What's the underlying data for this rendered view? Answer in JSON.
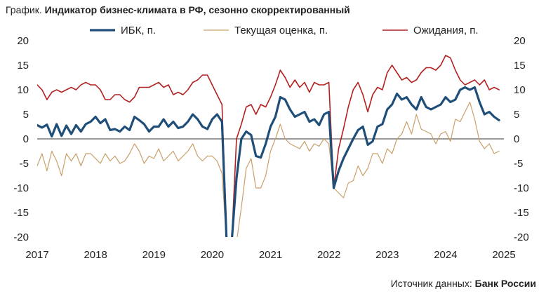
{
  "title_prefix": "График.",
  "title": "Индикатор бизнес-климата в РФ, сезонно скорректированный",
  "source_label": "Источник данных:",
  "source_value": "Банк России",
  "chart_data": {
    "type": "line",
    "ylim": [
      -20,
      20
    ],
    "yticks": [
      20,
      15,
      10,
      5,
      0,
      -5,
      -10,
      -15,
      -20
    ],
    "xlim": [
      2017.0,
      2025.0
    ],
    "xticks": [
      "2017",
      "2018",
      "2019",
      "2020",
      "2021",
      "2022",
      "2023",
      "2024",
      "2025"
    ],
    "grid": false,
    "zero_line": true,
    "legend_position": "top",
    "series": [
      {
        "name": "ИБК, п.",
        "color": "#1f4e79",
        "style": "thick",
        "x": [
          2017.0,
          2017.083,
          2017.167,
          2017.25,
          2017.333,
          2017.417,
          2017.5,
          2017.583,
          2017.667,
          2017.75,
          2017.833,
          2017.917,
          2018.0,
          2018.083,
          2018.167,
          2018.25,
          2018.333,
          2018.417,
          2018.5,
          2018.583,
          2018.667,
          2018.75,
          2018.833,
          2018.917,
          2019.0,
          2019.083,
          2019.167,
          2019.25,
          2019.333,
          2019.417,
          2019.5,
          2019.583,
          2019.667,
          2019.75,
          2019.833,
          2019.917,
          2020.0,
          2020.083,
          2020.167,
          2020.25,
          2020.333,
          2020.417,
          2020.5,
          2020.583,
          2020.667,
          2020.75,
          2020.833,
          2020.917,
          2021.0,
          2021.083,
          2021.167,
          2021.25,
          2021.333,
          2021.417,
          2021.5,
          2021.583,
          2021.667,
          2021.75,
          2021.833,
          2021.917,
          2022.0,
          2022.083,
          2022.167,
          2022.25,
          2022.333,
          2022.417,
          2022.5,
          2022.583,
          2022.667,
          2022.75,
          2022.833,
          2022.917,
          2023.0,
          2023.083,
          2023.167,
          2023.25,
          2023.333,
          2023.417,
          2023.5,
          2023.583,
          2023.667,
          2023.75,
          2023.833,
          2023.917,
          2024.0,
          2024.083,
          2024.167,
          2024.25,
          2024.333,
          2024.417,
          2024.5,
          2024.583,
          2024.667,
          2024.75,
          2024.833,
          2024.917
        ],
        "values": [
          2.8,
          2.3,
          2.9,
          0.5,
          3.0,
          0.6,
          2.7,
          1.0,
          2.8,
          1.5,
          3.0,
          3.5,
          4.5,
          3.2,
          4.0,
          1.8,
          2.0,
          1.5,
          2.5,
          1.8,
          4.5,
          3.8,
          3.0,
          1.5,
          2.5,
          2.5,
          4.0,
          2.5,
          3.5,
          2.2,
          2.5,
          3.5,
          5.0,
          4.0,
          2.5,
          2.0,
          4.0,
          5.0,
          3.5,
          -22,
          -21,
          -8,
          0,
          1.5,
          0.8,
          -3.5,
          -3.8,
          -1,
          2.5,
          4.5,
          8.5,
          8.0,
          6.0,
          4.5,
          5.0,
          5.5,
          3.5,
          4.0,
          2.8,
          5.0,
          5.5,
          -10,
          -6.5,
          -4,
          -2,
          0,
          1.8,
          2.5,
          -1.2,
          -0.5,
          2.5,
          3.0,
          6.0,
          7.0,
          9.2,
          8.0,
          8.5,
          7.0,
          6.0,
          8.5,
          6.5,
          6.0,
          6.5,
          7.0,
          8.5,
          7.5,
          8.0,
          10.0,
          10.5,
          10.0,
          10.5,
          7.5,
          5.0,
          5.5,
          4.5,
          3.8
        ]
      },
      {
        "name": "Текущая оценка, п.",
        "color": "#c9a06b",
        "style": "thin",
        "x": [
          2017.0,
          2017.083,
          2017.167,
          2017.25,
          2017.333,
          2017.417,
          2017.5,
          2017.583,
          2017.667,
          2017.75,
          2017.833,
          2017.917,
          2018.0,
          2018.083,
          2018.167,
          2018.25,
          2018.333,
          2018.417,
          2018.5,
          2018.583,
          2018.667,
          2018.75,
          2018.833,
          2018.917,
          2019.0,
          2019.083,
          2019.167,
          2019.25,
          2019.333,
          2019.417,
          2019.5,
          2019.583,
          2019.667,
          2019.75,
          2019.833,
          2019.917,
          2020.0,
          2020.083,
          2020.167,
          2020.25,
          2020.333,
          2020.417,
          2020.5,
          2020.583,
          2020.667,
          2020.75,
          2020.833,
          2020.917,
          2021.0,
          2021.083,
          2021.167,
          2021.25,
          2021.333,
          2021.417,
          2021.5,
          2021.583,
          2021.667,
          2021.75,
          2021.833,
          2021.917,
          2022.0,
          2022.083,
          2022.167,
          2022.25,
          2022.333,
          2022.417,
          2022.5,
          2022.583,
          2022.667,
          2022.75,
          2022.833,
          2022.917,
          2023.0,
          2023.083,
          2023.167,
          2023.25,
          2023.333,
          2023.417,
          2023.5,
          2023.583,
          2023.667,
          2023.75,
          2023.833,
          2023.917,
          2024.0,
          2024.083,
          2024.167,
          2024.25,
          2024.333,
          2024.417,
          2024.5,
          2024.583,
          2024.667,
          2024.75,
          2024.833,
          2024.917
        ],
        "values": [
          -5.5,
          -3.0,
          -6.5,
          -2.5,
          -4.5,
          -7.5,
          -3.0,
          -4.5,
          -3.0,
          -5.5,
          -3.0,
          -3.0,
          -4.0,
          -5.0,
          -3.0,
          -4.5,
          -3.5,
          -5.0,
          -4.5,
          -3.0,
          -1.0,
          -2.5,
          -5.0,
          -3.5,
          -4.0,
          -2.0,
          -4.5,
          -3.5,
          -2.5,
          -4.5,
          -3.5,
          -2.5,
          -1.0,
          -3.5,
          -4.5,
          -3.5,
          -3.5,
          -4.5,
          -7.0,
          -22,
          -22,
          -21,
          -14,
          -6.0,
          -4.0,
          -10,
          -10,
          -7.5,
          -2.5,
          0,
          3.0,
          0,
          -1.0,
          -1.5,
          -2.0,
          -0.5,
          -2.5,
          -1.0,
          -1.5,
          0,
          -1.0,
          -10,
          -11,
          -12,
          -9.0,
          -8.5,
          -5.5,
          -7.5,
          -6.0,
          -3.0,
          -3.0,
          -5.0,
          -2.0,
          -3.0,
          0,
          1.0,
          3.5,
          1.0,
          5.0,
          2.0,
          1.5,
          1.0,
          -1.0,
          1.0,
          1.5,
          -0.5,
          4.0,
          3.5,
          5.5,
          7.5,
          4.0,
          -0.5,
          -2.0,
          -1.0,
          -3.0,
          -2.5
        ]
      },
      {
        "name": "Ожидания, п.",
        "color": "#b22222",
        "style": "medium",
        "x": [
          2017.0,
          2017.083,
          2017.167,
          2017.25,
          2017.333,
          2017.417,
          2017.5,
          2017.583,
          2017.667,
          2017.75,
          2017.833,
          2017.917,
          2018.0,
          2018.083,
          2018.167,
          2018.25,
          2018.333,
          2018.417,
          2018.5,
          2018.583,
          2018.667,
          2018.75,
          2018.833,
          2018.917,
          2019.0,
          2019.083,
          2019.167,
          2019.25,
          2019.333,
          2019.417,
          2019.5,
          2019.583,
          2019.667,
          2019.75,
          2019.833,
          2019.917,
          2020.0,
          2020.083,
          2020.167,
          2020.25,
          2020.333,
          2020.417,
          2020.5,
          2020.583,
          2020.667,
          2020.75,
          2020.833,
          2020.917,
          2021.0,
          2021.083,
          2021.167,
          2021.25,
          2021.333,
          2021.417,
          2021.5,
          2021.583,
          2021.667,
          2021.75,
          2021.833,
          2021.917,
          2022.0,
          2022.083,
          2022.167,
          2022.25,
          2022.333,
          2022.417,
          2022.5,
          2022.583,
          2022.667,
          2022.75,
          2022.833,
          2022.917,
          2023.0,
          2023.083,
          2023.167,
          2023.25,
          2023.333,
          2023.417,
          2023.5,
          2023.583,
          2023.667,
          2023.75,
          2023.833,
          2023.917,
          2024.0,
          2024.083,
          2024.167,
          2024.25,
          2024.333,
          2024.417,
          2024.5,
          2024.583,
          2024.667,
          2024.75,
          2024.833,
          2024.917
        ],
        "values": [
          11.0,
          10.0,
          8.0,
          9.5,
          10.0,
          9.5,
          10.0,
          10.5,
          10.0,
          11.0,
          11.5,
          11.0,
          11.0,
          10.0,
          8.0,
          8.0,
          9.0,
          9.0,
          8.0,
          7.5,
          8.5,
          10.5,
          10.5,
          10.5,
          11.0,
          11.5,
          10.5,
          11.0,
          9.0,
          9.5,
          9.0,
          10.0,
          11.5,
          12.0,
          13.0,
          13.0,
          11.0,
          9.0,
          7.0,
          -21,
          -21,
          0,
          3.0,
          6.5,
          7.0,
          5.0,
          7.0,
          6.5,
          8.5,
          11.0,
          14.0,
          12.5,
          10.5,
          12.0,
          10.5,
          11.5,
          9.5,
          11.5,
          11.0,
          11.0,
          11.5,
          -10,
          -2.0,
          2.0,
          6.5,
          10.0,
          11.5,
          9.0,
          5.5,
          9.0,
          10.5,
          10.0,
          13.5,
          15.0,
          13.5,
          12.0,
          12.5,
          11.5,
          12.0,
          13.5,
          14.5,
          14.5,
          14.0,
          15.0,
          17.0,
          16.5,
          14.0,
          12.0,
          11.0,
          11.5,
          12.0,
          11.0,
          12.0,
          10.0,
          10.5,
          10.0
        ]
      }
    ]
  }
}
